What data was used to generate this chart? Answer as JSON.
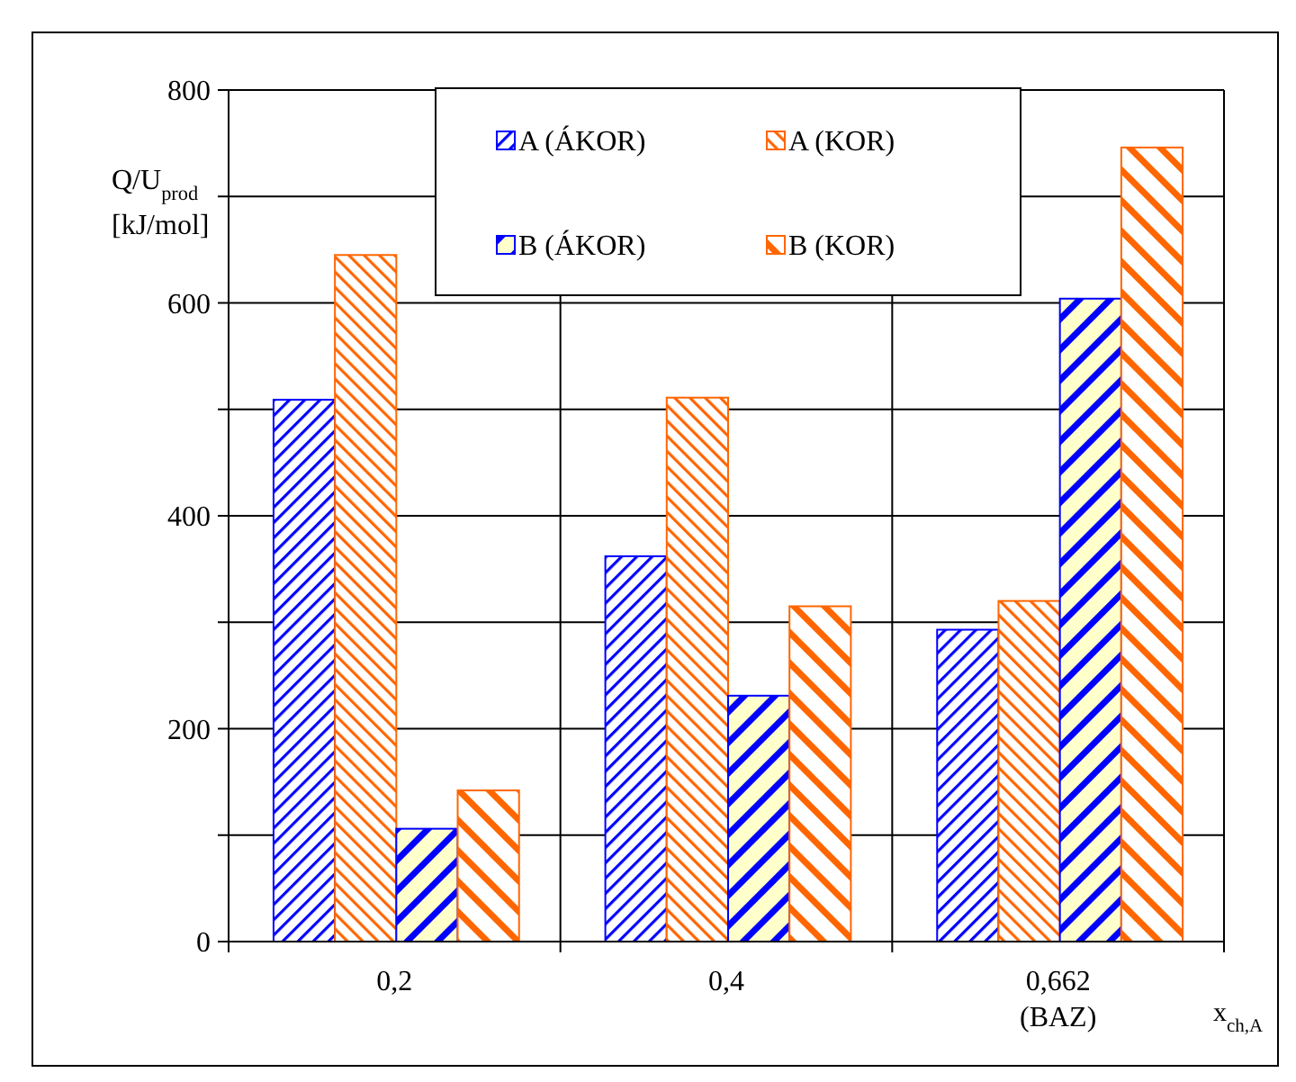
{
  "chart_data": {
    "type": "bar",
    "categories": [
      "0,2",
      "0,4",
      "0,662\n(BAZ)"
    ],
    "series": [
      {
        "name": "A (ÁKOR)",
        "color": "#0000ff",
        "values": [
          509,
          362,
          293
        ]
      },
      {
        "name": "A (KOR)",
        "color": "#ff6600",
        "values": [
          645,
          511,
          320
        ]
      },
      {
        "name": "B (ÁKOR)",
        "color": "#0000ff",
        "values": [
          106,
          231,
          604
        ]
      },
      {
        "name": "B (KOR)",
        "color": "#ff6600",
        "values": [
          142,
          315,
          746
        ]
      }
    ],
    "ylabel": "Q/U$_{prod}$ [kJ/mol]",
    "xlabel": "x$_{ch,A}$",
    "ylim": [
      0,
      800
    ],
    "yticks": [
      0,
      {
        "value": 100,
        "label": null
      },
      200,
      {
        "value": 300,
        "label": null
      },
      400,
      {
        "value": 500,
        "label": null
      },
      600,
      {
        "value": 700,
        "label": null
      },
      800
    ],
    "grid": true,
    "legend": "top"
  }
}
